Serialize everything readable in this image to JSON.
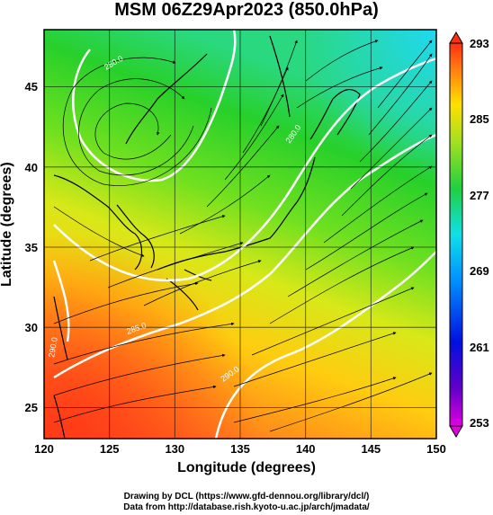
{
  "title": "MSM 06Z29Apr2023 (850.0hPa)",
  "axes": {
    "xlabel": "Longitude (degrees)",
    "ylabel": "Latitude  (degrees)",
    "x_ticks": [
      "120",
      "125",
      "130",
      "135",
      "140",
      "145",
      "150"
    ],
    "y_ticks": [
      "25",
      "30",
      "35",
      "40",
      "45"
    ]
  },
  "colorbar": {
    "labels": [
      "293",
      "285",
      "277",
      "269",
      "261",
      "253"
    ]
  },
  "contour_labels": [
    "280.0",
    "280.0",
    "285.0",
    "290.0",
    "290.0"
  ],
  "credits": {
    "line1": "Drawing by DCL (https://www.gfd-dennou.org/library/dcl/)",
    "line2": "Data from http://database.rish.kyoto-u.ac.jp/arch/jmadata/"
  },
  "map": {
    "lon_range": [
      120,
      150
    ],
    "lat_range": [
      22.5,
      48
    ],
    "grid": true,
    "field": "temperature (K) with streamlines",
    "colors": {
      "warm": "#ff5a1e",
      "mid": "#ffd400",
      "cool": "#2ad42a",
      "cold": "#18d8f0"
    }
  }
}
